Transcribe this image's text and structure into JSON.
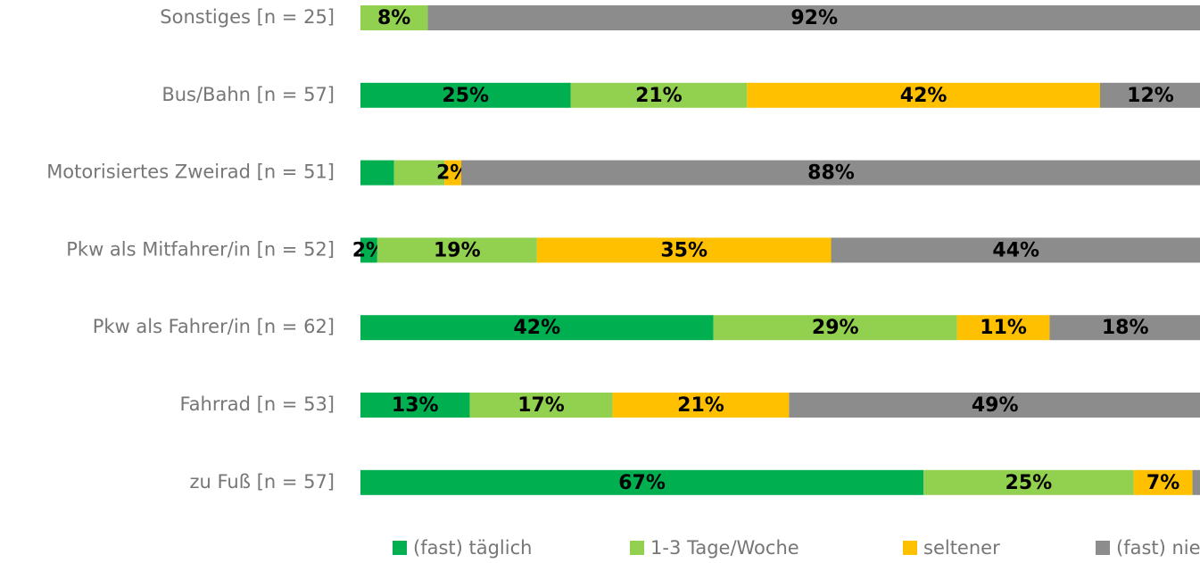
{
  "chart_data": {
    "type": "stacked-barh",
    "categories": [
      "Sonstiges [n = 25]",
      "Bus/Bahn [n = 57]",
      "Motorisiertes Zweirad [n = 51]",
      "Pkw als Mitfahrer/in [n = 52]",
      "Pkw als Fahrer/in [n = 62]",
      "Fahrrad [n = 53]",
      "zu Fuß [n = 57]"
    ],
    "xlim": [
      0,
      100
    ],
    "legend": "bottom",
    "series": [
      {
        "name": "(fast) täglich",
        "color": "#00b050",
        "values": [
          0,
          25,
          4,
          2,
          42,
          13,
          67
        ],
        "value_labels": [
          null,
          "25%",
          null,
          "2%",
          "42%",
          "13%",
          "67%"
        ]
      },
      {
        "name": "1-3 Tage/Woche",
        "color": "#92d050",
        "values": [
          8,
          21,
          6,
          19,
          29,
          17,
          25
        ],
        "value_labels": [
          "8%",
          "21%",
          null,
          "19%",
          "29%",
          "17%",
          "25%"
        ]
      },
      {
        "name": "seltener",
        "color": "#ffc000",
        "values": [
          0,
          42,
          2,
          35,
          11,
          21,
          7
        ],
        "value_labels": [
          null,
          "42%",
          "2%",
          "35%",
          "11%",
          "21%",
          "7%"
        ]
      },
      {
        "name": "(fast) nie",
        "color": "#8c8c8c",
        "values": [
          92,
          12,
          88,
          44,
          18,
          49,
          1
        ],
        "value_labels": [
          "92%",
          "12%",
          "88%",
          "44%",
          "18%",
          "49%",
          null
        ]
      }
    ]
  }
}
